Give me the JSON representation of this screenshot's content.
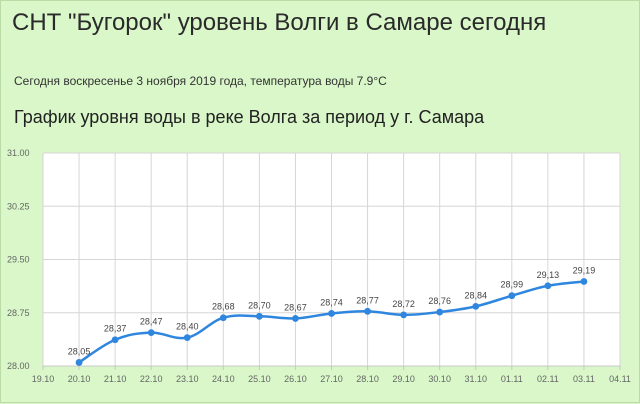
{
  "header": {
    "title": "СНТ \"Бугорок\" уровень Волги в Самаре сегодня",
    "subtitle": "Сегодня воскресенье 3 ноября 2019 года, температура воды 7.9°C",
    "chart_heading": "График уровня воды в реке Волга за период у г. Самара"
  },
  "colors": {
    "background": "#d9f7c9",
    "line": "#2e86de",
    "grid": "#d6d6d6",
    "axis": "#c8c8c8",
    "plot_bg": "#ffffff"
  },
  "chart_data": {
    "type": "line",
    "title": "График уровня воды в реке Волга за период у г. Самара",
    "xlabel": "",
    "ylabel": "",
    "x_ticks": [
      "19.10",
      "20.10",
      "21.10",
      "22.10",
      "23.10",
      "24.10",
      "25.10",
      "26.10",
      "27.10",
      "28.10",
      "29.10",
      "30.10",
      "31.10",
      "01.11",
      "02.11",
      "03.11",
      "04.11"
    ],
    "y_ticks": [
      "28.00",
      "28.75",
      "29.50",
      "30.25",
      "31.00"
    ],
    "ylim": [
      28.0,
      31.0
    ],
    "grid": true,
    "series": [
      {
        "x": [
          "20.10",
          "21.10",
          "22.10",
          "23.10",
          "24.10",
          "25.10",
          "26.10",
          "27.10",
          "28.10",
          "29.10",
          "30.10",
          "31.10",
          "01.11",
          "02.11",
          "03.11"
        ],
        "values": [
          28.05,
          28.37,
          28.47,
          28.4,
          28.68,
          28.7,
          28.67,
          28.74,
          28.77,
          28.72,
          28.76,
          28.84,
          28.99,
          29.13,
          29.19
        ],
        "labels": [
          "28,05",
          "28,37",
          "28,47",
          "28,40",
          "28,68",
          "28,70",
          "28,67",
          "28,74",
          "28,77",
          "28,72",
          "28,76",
          "28,84",
          "28,99",
          "29,13",
          "29,19"
        ]
      }
    ]
  }
}
